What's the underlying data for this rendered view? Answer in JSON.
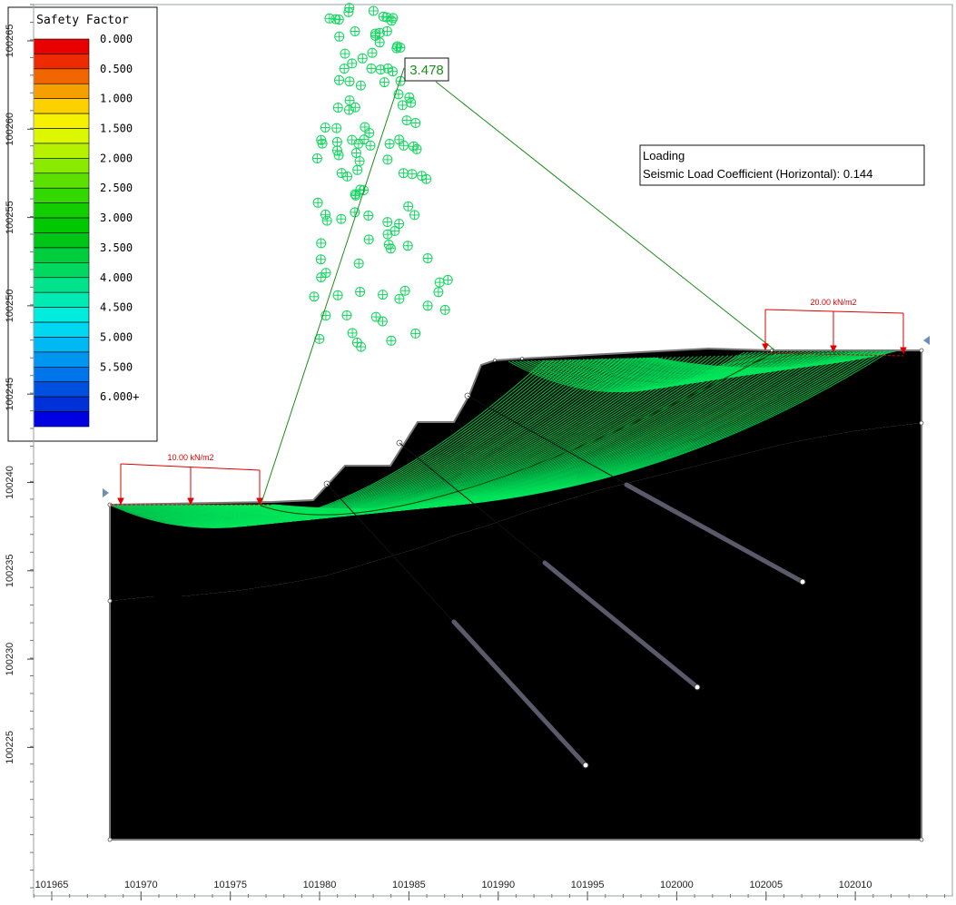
{
  "legend": {
    "title": "Safety Factor",
    "labels": [
      "0.000",
      "0.500",
      "1.000",
      "1.500",
      "2.000",
      "2.500",
      "3.000",
      "3.500",
      "4.000",
      "4.500",
      "5.000",
      "5.500",
      "6.000+"
    ],
    "swatches": [
      "#e80000",
      "#ee2a00",
      "#f26600",
      "#f5a000",
      "#fdd000",
      "#f6f100",
      "#dcf800",
      "#b6f200",
      "#8aea00",
      "#5ce000",
      "#32d800",
      "#12cd00",
      "#00c800",
      "#00c416",
      "#00ce3d",
      "#00d862",
      "#00e28c",
      "#00eab4",
      "#00ecdc",
      "#00d8f2",
      "#00b8f4",
      "#0096f0",
      "#0074ea",
      "#0050e0",
      "#0030d8",
      "#0000e0"
    ]
  },
  "critical_fs": "3.478",
  "loading_box": {
    "title": "Loading",
    "text": "Seismic Load Coefficient (Horizontal): 0.144"
  },
  "loads": [
    {
      "label": "10.00 kN/m2"
    },
    {
      "label": "20.00 kN/m2"
    }
  ],
  "axes": {
    "x_ticks": [
      "101965",
      "101970",
      "101975",
      "101980",
      "101985",
      "101990",
      "101995",
      "102000",
      "102005",
      "102010"
    ],
    "y_ticks": [
      "100265",
      "100260",
      "100255",
      "100250",
      "100245",
      "100240",
      "100235",
      "100230",
      "100225"
    ]
  },
  "colors": {
    "soil_upper": "#c8ad86",
    "soil_lower": "#fdd400",
    "slip_surface": "#00e55a",
    "center_marker": "#14d760",
    "load_arrow": "#e00000",
    "boundary": "#7a7a7a",
    "anchor": "#5a5a6a"
  }
}
